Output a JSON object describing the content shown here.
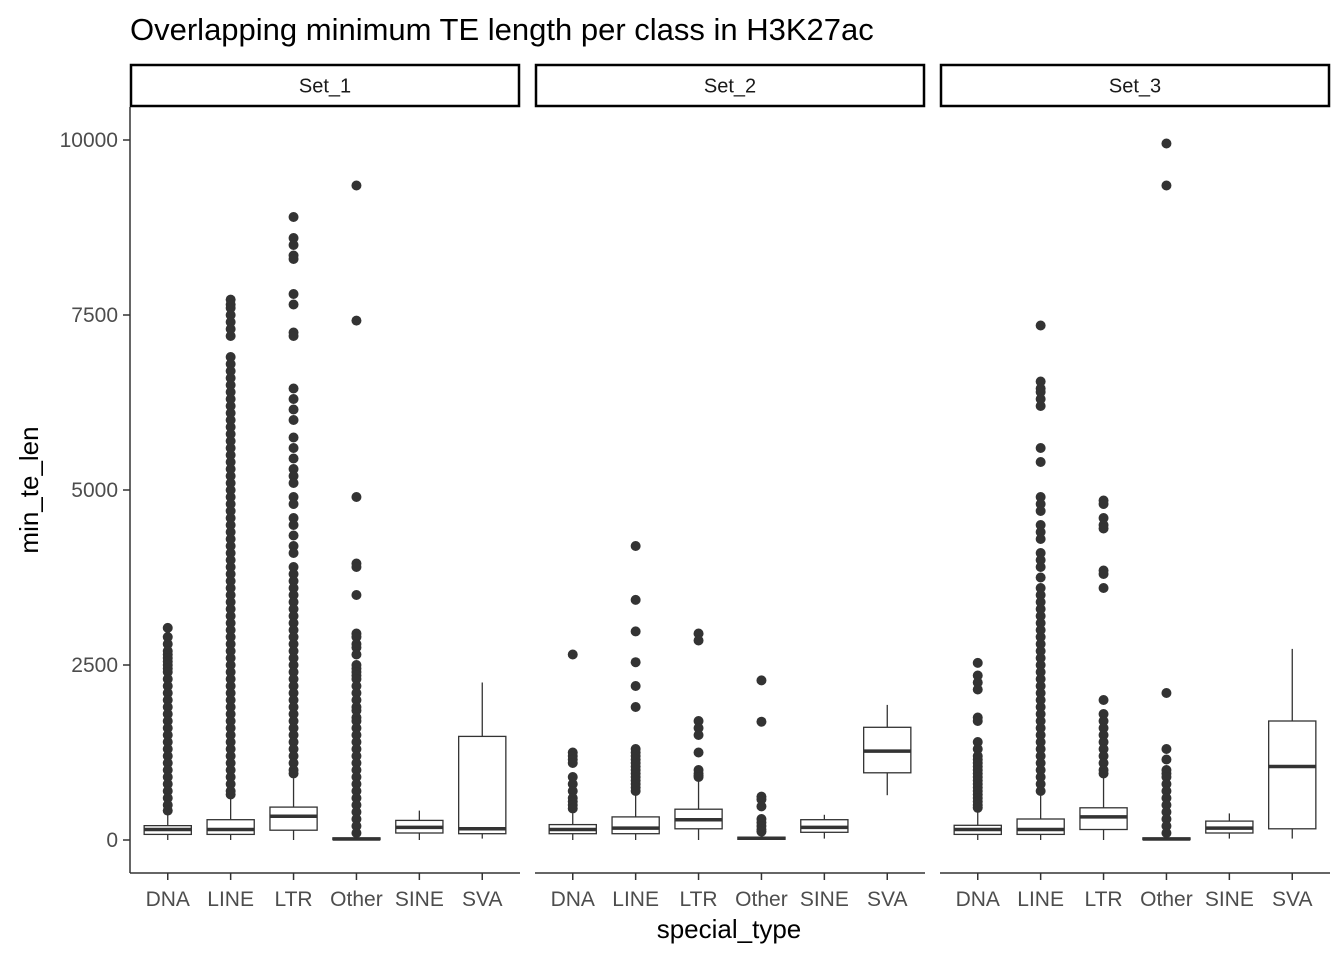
{
  "chart_data": {
    "type": "boxplot",
    "title": "Overlapping minimum TE length per class in H3K27ac",
    "xlabel": "special_type",
    "ylabel": "min_te_len",
    "ylim": [
      -480,
      10500
    ],
    "yticks": [
      0,
      2500,
      5000,
      7500,
      10000
    ],
    "categories": [
      "DNA",
      "LINE",
      "LTR",
      "Other",
      "SINE",
      "SVA"
    ],
    "grid": false,
    "colors": {
      "box_stroke": "#333333",
      "point": "#333333",
      "strip_border": "#000000",
      "axis": "#333333"
    },
    "panels": [
      {
        "name": "Set_1",
        "boxes": [
          {
            "category": "DNA",
            "q1": 80,
            "median": 150,
            "q3": 205,
            "whisker_low": 0,
            "whisker_high": 380,
            "outliers": [
              3030,
              2900,
              2800,
              2700,
              2650,
              2600,
              2550,
              2500,
              2450,
              2400,
              2300,
              2200,
              2100,
              2000,
              1900,
              1800,
              1700,
              1600,
              1500,
              1400,
              1300,
              1200,
              1100,
              1000,
              900,
              800,
              700,
              600,
              500,
              420
            ]
          },
          {
            "category": "LINE",
            "q1": 80,
            "median": 150,
            "q3": 290,
            "whisker_low": 0,
            "whisker_high": 600,
            "outliers": [
              7720,
              7650,
              7600,
              7500,
              7400,
              7300,
              7200,
              6900,
              6800,
              6700,
              6600,
              6500,
              6400,
              6300,
              6200,
              6100,
              6000,
              5900,
              5800,
              5700,
              5600,
              5500,
              5400,
              5300,
              5200,
              5100,
              5000,
              4900,
              4800,
              4700,
              4600,
              4500,
              4400,
              4300,
              4200,
              4100,
              4000,
              3900,
              3800,
              3700,
              3600,
              3500,
              3400,
              3300,
              3200,
              3100,
              3000,
              2900,
              2800,
              2700,
              2600,
              2500,
              2400,
              2300,
              2200,
              2100,
              2000,
              1900,
              1800,
              1700,
              1600,
              1500,
              1400,
              1300,
              1200,
              1100,
              1000,
              900,
              800,
              700,
              650
            ]
          },
          {
            "category": "LTR",
            "q1": 140,
            "median": 340,
            "q3": 470,
            "whisker_low": 0,
            "whisker_high": 880,
            "outliers": [
              8900,
              8600,
              8500,
              8350,
              8300,
              7800,
              7650,
              7250,
              7200,
              6450,
              6300,
              6150,
              6000,
              5750,
              5600,
              5450,
              5300,
              5200,
              5100,
              4900,
              4800,
              4600,
              4500,
              4350,
              4200,
              4100,
              3900,
              3800,
              3700,
              3600,
              3500,
              3400,
              3300,
              3200,
              3100,
              3000,
              2900,
              2800,
              2700,
              2600,
              2500,
              2400,
              2300,
              2200,
              2100,
              2000,
              1900,
              1800,
              1700,
              1600,
              1500,
              1400,
              1300,
              1200,
              1100,
              1000,
              950
            ]
          },
          {
            "category": "Other",
            "q1": 5,
            "median": 15,
            "q3": 30,
            "whisker_low": 0,
            "whisker_high": 60,
            "outliers": [
              9350,
              7420,
              4900,
              3950,
              3900,
              3500,
              2950,
              2900,
              2800,
              2750,
              2650,
              2500,
              2450,
              2400,
              2350,
              2300,
              2200,
              2100,
              2000,
              1900,
              1850,
              1750,
              1700,
              1600,
              1500,
              1400,
              1300,
              1200,
              1100,
              1000,
              900,
              800,
              700,
              600,
              500,
              400,
              300,
              200,
              100
            ]
          },
          {
            "category": "SINE",
            "q1": 100,
            "median": 180,
            "q3": 280,
            "whisker_low": 0,
            "whisker_high": 420,
            "outliers": []
          },
          {
            "category": "SVA",
            "q1": 90,
            "median": 160,
            "q3": 1480,
            "whisker_low": 20,
            "whisker_high": 2250,
            "outliers": []
          }
        ]
      },
      {
        "name": "Set_2",
        "boxes": [
          {
            "category": "DNA",
            "q1": 90,
            "median": 150,
            "q3": 220,
            "whisker_low": 0,
            "whisker_high": 380,
            "outliers": [
              2650,
              1250,
              1200,
              1150,
              1100,
              900,
              800,
              700,
              600,
              550,
              500,
              450
            ]
          },
          {
            "category": "LINE",
            "q1": 90,
            "median": 170,
            "q3": 330,
            "whisker_low": 0,
            "whisker_high": 660,
            "outliers": [
              4200,
              3430,
              2980,
              2540,
              2200,
              1900,
              1300,
              1250,
              1200,
              1150,
              1100,
              1050,
              1000,
              950,
              900,
              850,
              800,
              750,
              700
            ]
          },
          {
            "category": "LTR",
            "q1": 160,
            "median": 290,
            "q3": 440,
            "whisker_low": 0,
            "whisker_high": 850,
            "outliers": [
              2950,
              2850,
              1700,
              1600,
              1500,
              1250,
              1000,
              950,
              920,
              900
            ]
          },
          {
            "category": "Other",
            "q1": 10,
            "median": 25,
            "q3": 40,
            "whisker_low": 0,
            "whisker_high": 80,
            "outliers": [
              2280,
              1690,
              620,
              580,
              480,
              300,
              250,
              200,
              150,
              120
            ]
          },
          {
            "category": "SINE",
            "q1": 110,
            "median": 180,
            "q3": 290,
            "whisker_low": 20,
            "whisker_high": 360,
            "outliers": []
          },
          {
            "category": "SVA",
            "q1": 960,
            "median": 1270,
            "q3": 1610,
            "whisker_low": 640,
            "whisker_high": 1930,
            "outliers": []
          }
        ]
      },
      {
        "name": "Set_3",
        "boxes": [
          {
            "category": "DNA",
            "q1": 80,
            "median": 150,
            "q3": 210,
            "whisker_low": 0,
            "whisker_high": 420,
            "outliers": [
              2530,
              2350,
              2250,
              2150,
              1750,
              1700,
              1400,
              1300,
              1200,
              1150,
              1100,
              1050,
              1000,
              950,
              900,
              850,
              800,
              750,
              700,
              650,
              600,
              550,
              500,
              460
            ]
          },
          {
            "category": "LINE",
            "q1": 80,
            "median": 150,
            "q3": 300,
            "whisker_low": 0,
            "whisker_high": 650,
            "outliers": [
              7350,
              6550,
              6450,
              6400,
              6300,
              6200,
              5600,
              5400,
              4900,
              4800,
              4700,
              4500,
              4400,
              4300,
              4100,
              4000,
              3900,
              3750,
              3600,
              3500,
              3400,
              3300,
              3200,
              3100,
              3000,
              2900,
              2800,
              2700,
              2600,
              2500,
              2400,
              2300,
              2200,
              2100,
              2000,
              1900,
              1800,
              1700,
              1600,
              1500,
              1400,
              1300,
              1200,
              1100,
              1000,
              900,
              800,
              700
            ]
          },
          {
            "category": "LTR",
            "q1": 150,
            "median": 330,
            "q3": 460,
            "whisker_low": 0,
            "whisker_high": 900,
            "outliers": [
              4850,
              4800,
              4600,
              4500,
              4450,
              3850,
              3800,
              3600,
              2000,
              1800,
              1700,
              1600,
              1500,
              1400,
              1300,
              1200,
              1100,
              1000,
              950
            ]
          },
          {
            "category": "Other",
            "q1": 5,
            "median": 15,
            "q3": 30,
            "whisker_low": 0,
            "whisker_high": 60,
            "outliers": [
              9950,
              9350,
              2100,
              1300,
              1150,
              1000,
              950,
              900,
              800,
              700,
              600,
              500,
              400,
              300,
              200,
              100
            ]
          },
          {
            "category": "SINE",
            "q1": 100,
            "median": 170,
            "q3": 270,
            "whisker_low": 20,
            "whisker_high": 380,
            "outliers": []
          },
          {
            "category": "SVA",
            "q1": 160,
            "median": 1050,
            "q3": 1700,
            "whisker_low": 20,
            "whisker_high": 2730,
            "outliers": []
          }
        ]
      }
    ]
  }
}
